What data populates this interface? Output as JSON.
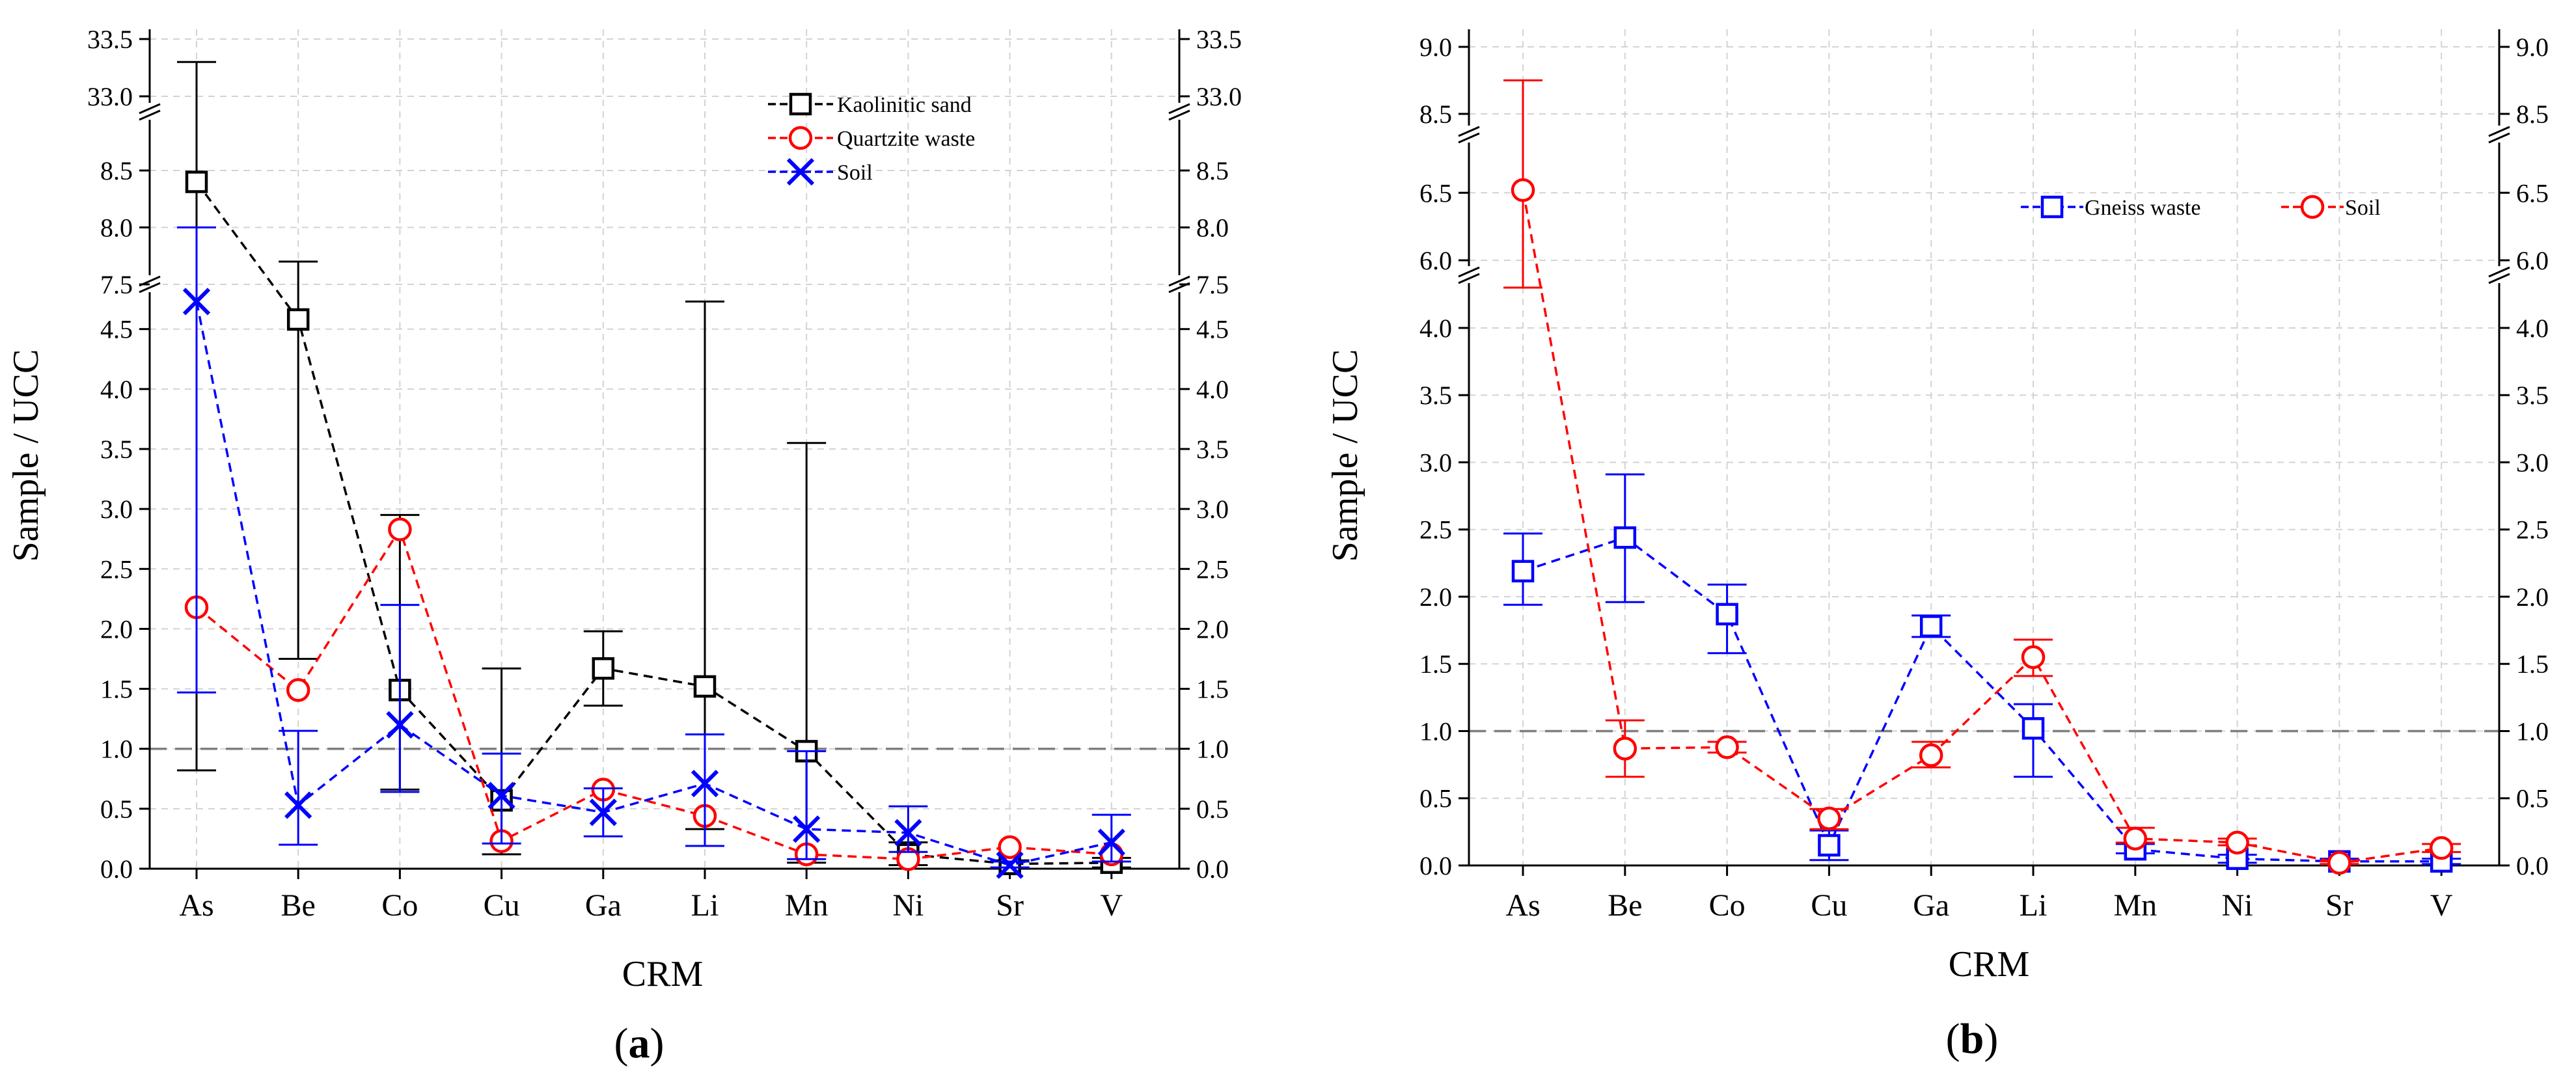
{
  "chart_data": [
    {
      "type": "line",
      "panel_label": "a",
      "title": "",
      "xlabel": "CRM",
      "ylabel": "Sample / UCC",
      "categories": [
        "As",
        "Be",
        "Co",
        "Cu",
        "Ga",
        "Li",
        "Mn",
        "Ni",
        "Sr",
        "V"
      ],
      "axis_breaks": [
        {
          "from": 4.9,
          "to": 7.5
        },
        {
          "from": 8.9,
          "to": 33.0
        }
      ],
      "y_segments": [
        {
          "range": [
            0,
            4.9
          ],
          "ticks": [
            "0.0",
            "0.5",
            "1.0",
            "1.5",
            "2.0",
            "2.5",
            "3.0",
            "3.5",
            "4.0",
            "4.5"
          ]
        },
        {
          "range": [
            7.5,
            8.9
          ],
          "ticks": [
            "7.5",
            "8.0",
            "8.5"
          ]
        },
        {
          "range": [
            33.0,
            33.5
          ],
          "ticks": [
            "33.0",
            "33.5"
          ]
        }
      ],
      "reference_line": 1.0,
      "legend_position": "top-right",
      "series": [
        {
          "name": "Kaolinitic sand",
          "color": "#000000",
          "marker": "square",
          "values": [
            8.4,
            4.58,
            1.49,
            0.57,
            1.67,
            1.52,
            0.98,
            0.12,
            0.04,
            0.05
          ],
          "err_low": [
            0.82,
            1.75,
            0.66,
            0.12,
            1.36,
            0.33,
            0.05,
            0.03,
            0.01,
            0.01
          ],
          "err_high": [
            33.3,
            7.7,
            2.95,
            1.67,
            1.98,
            4.73,
            3.55,
            0.22,
            0.07,
            0.09
          ]
        },
        {
          "name": "Quartzite waste",
          "color": "#ff0000",
          "marker": "circle",
          "values": [
            2.18,
            1.49,
            2.83,
            0.23,
            0.66,
            0.44,
            0.12,
            0.08,
            0.18,
            0.12
          ],
          "err_low": null,
          "err_high": null
        },
        {
          "name": "Soil",
          "color": "#0000ff",
          "marker": "x",
          "values": [
            4.73,
            0.53,
            1.2,
            0.61,
            0.47,
            0.71,
            0.33,
            0.3,
            0.03,
            0.22
          ],
          "err_low": [
            1.47,
            0.2,
            0.64,
            0.21,
            0.27,
            0.19,
            0.08,
            0.14,
            0.01,
            0.06
          ],
          "err_high": [
            8.0,
            1.15,
            2.2,
            0.96,
            0.67,
            1.12,
            0.98,
            0.52,
            0.06,
            0.45
          ]
        }
      ]
    },
    {
      "type": "line",
      "panel_label": "b",
      "title": "",
      "xlabel": "CRM",
      "ylabel": "Sample / UCC",
      "categories": [
        "As",
        "Be",
        "Co",
        "Cu",
        "Ga",
        "Li",
        "Mn",
        "Ni",
        "Sr",
        "V"
      ],
      "axis_breaks": [
        {
          "from": 4.3,
          "to": 6.0
        },
        {
          "from": 6.8,
          "to": 8.5
        }
      ],
      "y_segments": [
        {
          "range": [
            0,
            4.3
          ],
          "ticks": [
            "0.0",
            "0.5",
            "1.0",
            "1.5",
            "2.0",
            "2.5",
            "3.0",
            "3.5",
            "4.0"
          ]
        },
        {
          "range": [
            6.0,
            6.8
          ],
          "ticks": [
            "6.0",
            "6.5"
          ]
        },
        {
          "range": [
            8.5,
            9.0
          ],
          "ticks": [
            "8.5",
            "9.0"
          ]
        }
      ],
      "reference_line": 1.0,
      "legend_position": "top-right",
      "series": [
        {
          "name": "Gneiss waste",
          "color": "#0000ff",
          "marker": "square",
          "values": [
            2.19,
            2.44,
            1.87,
            0.15,
            1.78,
            1.02,
            0.12,
            0.05,
            0.03,
            0.03
          ],
          "err_low": [
            1.94,
            1.96,
            1.58,
            0.04,
            1.7,
            0.66,
            0.09,
            0.02,
            0.01,
            0.01
          ],
          "err_high": [
            2.47,
            2.91,
            2.09,
            0.26,
            1.86,
            1.2,
            0.16,
            0.08,
            0.05,
            0.05
          ]
        },
        {
          "name": "Soil",
          "color": "#ff0000",
          "marker": "circle",
          "values": [
            6.52,
            0.87,
            0.88,
            0.35,
            0.82,
            1.55,
            0.2,
            0.17,
            0.02,
            0.13
          ],
          "err_low": [
            4.3,
            0.66,
            0.84,
            0.27,
            0.73,
            1.41,
            0.17,
            0.15,
            0.01,
            0.1
          ],
          "err_high": [
            8.75,
            1.08,
            0.92,
            0.42,
            0.92,
            1.68,
            0.28,
            0.2,
            0.03,
            0.16
          ]
        }
      ]
    }
  ]
}
